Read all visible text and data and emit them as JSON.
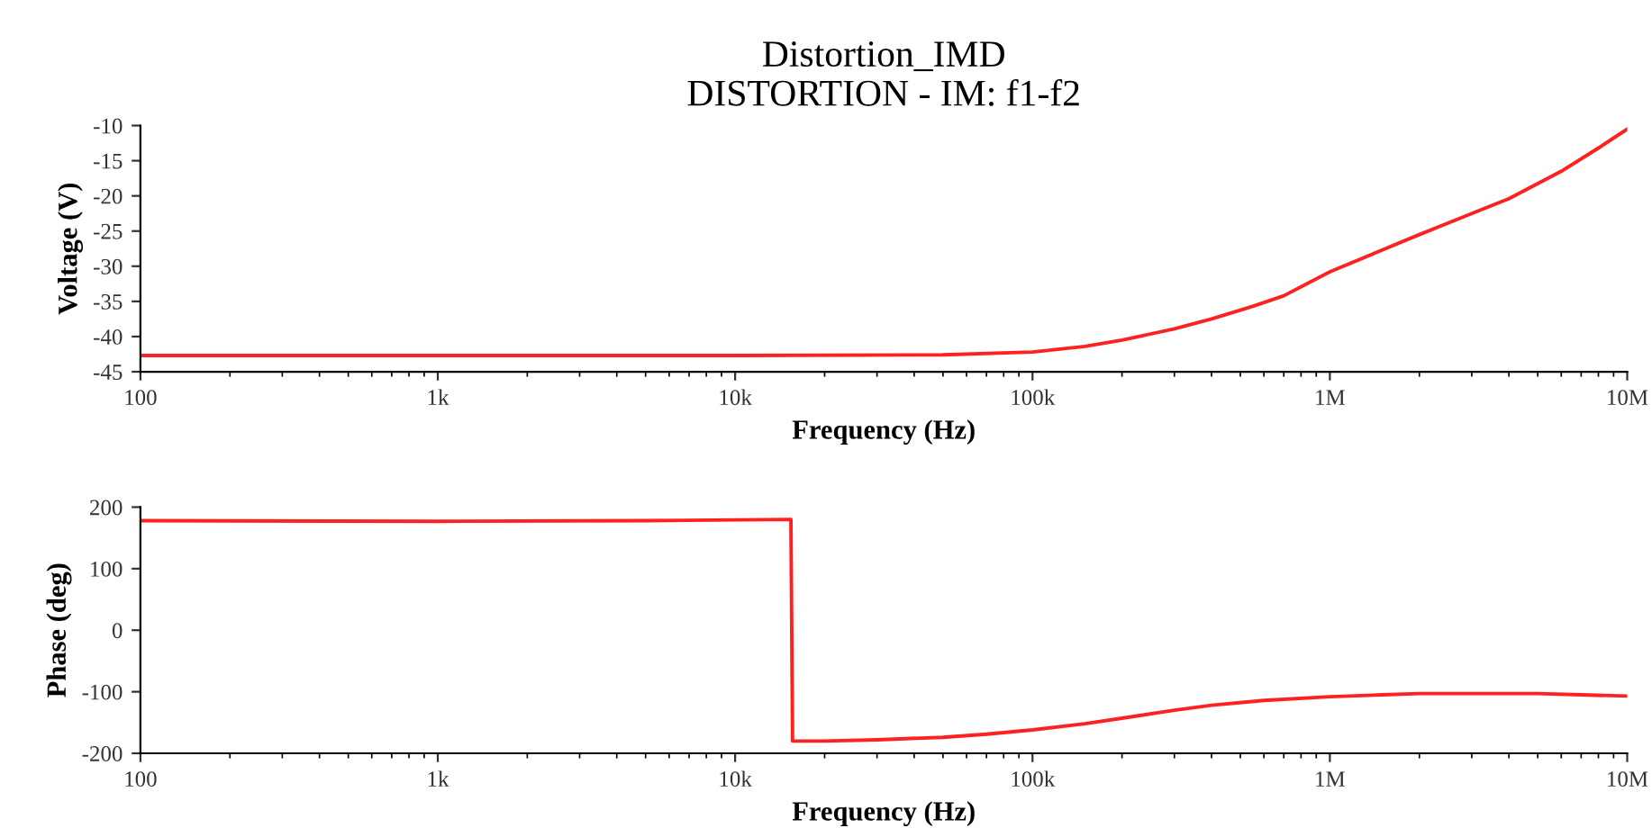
{
  "chart_data": [
    {
      "type": "line",
      "title": "Distortion_IMD",
      "subtitle": "DISTORTION - IM: f1-f2",
      "xlabel": "Frequency (Hz)",
      "ylabel": "Voltage (V)",
      "log": "x",
      "grid": false,
      "legend": false,
      "x": [
        100,
        1000,
        10000,
        50000,
        100000,
        150000,
        200000,
        300000,
        400000,
        550000,
        700000,
        1000000,
        1500000,
        2000000,
        3000000,
        4000000,
        6000000,
        8000000,
        10000000
      ],
      "series": [
        {
          "color": "#ff2020",
          "values": [
            -42.7,
            -42.7,
            -42.7,
            -42.6,
            -42.2,
            -41.4,
            -40.5,
            -38.9,
            -37.5,
            -35.7,
            -34.2,
            -30.8,
            -27.7,
            -25.5,
            -22.5,
            -20.4,
            -16.5,
            -13.2,
            -10.5
          ]
        }
      ],
      "xlim": [
        100,
        10000000
      ],
      "xticks": [
        {
          "value": 100,
          "label": "100"
        },
        {
          "value": 1000,
          "label": "1k"
        },
        {
          "value": 10000,
          "label": "10k"
        },
        {
          "value": 100000,
          "label": "100k"
        },
        {
          "value": 1000000,
          "label": "1M"
        },
        {
          "value": 10000000,
          "label": "10M"
        }
      ],
      "ylim": [
        -45,
        -10
      ],
      "yticks": [
        -45,
        -40,
        -35,
        -30,
        -25,
        -20,
        -15,
        -10
      ]
    },
    {
      "type": "line",
      "xlabel": "Frequency (Hz)",
      "ylabel": "Phase (deg)",
      "log": "x",
      "grid": false,
      "legend": false,
      "x": [
        100,
        1000,
        5000,
        15400,
        15600,
        20000,
        30000,
        50000,
        70000,
        100000,
        150000,
        200000,
        300000,
        400000,
        600000,
        1000000,
        1500000,
        2000000,
        3000000,
        5000000,
        7000000,
        10000000
      ],
      "series": [
        {
          "color": "#ff2020",
          "values": [
            178,
            177,
            178,
            180,
            -180,
            -180,
            -178,
            -174,
            -169,
            -162,
            -152,
            -143,
            -130,
            -122,
            -114,
            -108,
            -105,
            -103,
            -103,
            -103,
            -105,
            -107
          ]
        }
      ],
      "xlim": [
        100,
        10000000
      ],
      "xticks": [
        {
          "value": 100,
          "label": "100"
        },
        {
          "value": 1000,
          "label": "1k"
        },
        {
          "value": 10000,
          "label": "10k"
        },
        {
          "value": 100000,
          "label": "100k"
        },
        {
          "value": 1000000,
          "label": "1M"
        },
        {
          "value": 10000000,
          "label": "10M"
        }
      ],
      "ylim": [
        -200,
        200
      ],
      "yticks": [
        -200,
        -100,
        0,
        100,
        200
      ]
    }
  ]
}
